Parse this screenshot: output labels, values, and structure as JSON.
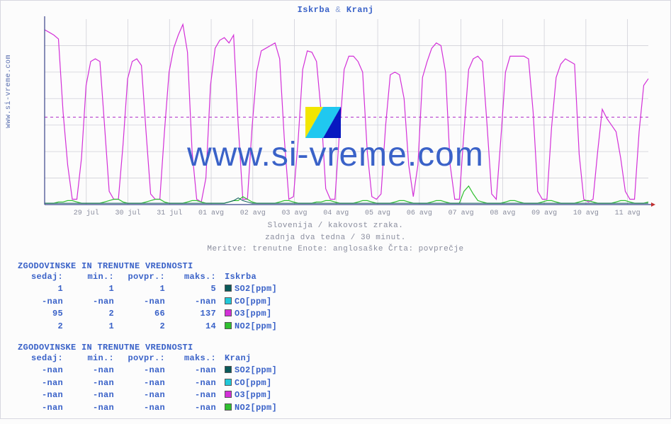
{
  "title_station1": "Iskrba",
  "title_amp": "&",
  "title_station2": "Kranj",
  "site_label": "www.si-vreme.com",
  "watermark_text": "www.si-vreme.com",
  "subcaption_line1": "Slovenija / kakovost zraka.",
  "subcaption_line2": "zadnja dva tedna / 30 minut.",
  "subcaption_line3": "Meritve: trenutne  Enote: anglosaške  Črta: povprečje",
  "chart": {
    "type": "line",
    "background_color": "#fcfcfc",
    "grid_color": "#d0d0d8",
    "axis_color": "#3a448a",
    "mean_line_color": "#b030c8",
    "mean_line_value": 66,
    "ylim": [
      0,
      140
    ],
    "yticks": [
      20,
      40,
      60,
      80,
      100,
      120
    ],
    "xticks": [
      "29 jul",
      "30 jul",
      "31 jul",
      "01 avg",
      "02 avg",
      "03 avg",
      "04 avg",
      "05 avg",
      "06 avg",
      "07 avg",
      "08 avg",
      "09 avg",
      "10 avg",
      "11 avg"
    ],
    "tick_fontsize": 10,
    "tick_color": "#8a8d9e",
    "series": [
      {
        "name": "O3",
        "color": "#d330d8",
        "width": 1.2,
        "values": [
          132,
          130,
          128,
          125,
          70,
          30,
          4,
          4,
          35,
          90,
          108,
          110,
          108,
          60,
          10,
          4,
          4,
          45,
          95,
          108,
          110,
          105,
          55,
          8,
          4,
          4,
          55,
          100,
          118,
          128,
          136,
          115,
          40,
          4,
          2,
          20,
          90,
          118,
          124,
          126,
          122,
          128,
          60,
          4,
          4,
          58,
          100,
          116,
          118,
          120,
          122,
          110,
          50,
          4,
          6,
          48,
          102,
          116,
          115,
          108,
          70,
          12,
          4,
          4,
          55,
          102,
          112,
          112,
          108,
          100,
          40,
          6,
          4,
          8,
          60,
          98,
          100,
          98,
          80,
          30,
          6,
          30,
          96,
          108,
          118,
          122,
          120,
          100,
          30,
          4,
          4,
          55,
          102,
          110,
          112,
          108,
          60,
          8,
          4,
          50,
          100,
          112,
          112,
          112,
          112,
          110,
          70,
          10,
          4,
          4,
          58,
          96,
          106,
          110,
          108,
          106,
          38,
          4,
          2,
          4,
          40,
          72,
          65,
          60,
          55,
          35,
          10,
          4,
          4,
          55,
          90,
          95
        ]
      },
      {
        "name": "NO2",
        "color": "#30c030",
        "width": 1.2,
        "values": [
          1,
          1,
          1,
          2,
          2,
          3,
          3,
          2,
          1,
          1,
          1,
          1,
          1,
          2,
          3,
          4,
          4,
          2,
          1,
          1,
          1,
          1,
          2,
          3,
          4,
          4,
          2,
          1,
          1,
          1,
          1,
          2,
          3,
          3,
          2,
          1,
          1,
          1,
          1,
          1,
          2,
          3,
          3,
          6,
          4,
          2,
          1,
          1,
          1,
          1,
          1,
          2,
          3,
          3,
          2,
          1,
          1,
          1,
          1,
          2,
          2,
          3,
          3,
          2,
          1,
          1,
          1,
          1,
          2,
          3,
          3,
          2,
          1,
          1,
          1,
          1,
          2,
          3,
          3,
          2,
          1,
          1,
          1,
          1,
          2,
          3,
          3,
          2,
          1,
          1,
          1,
          10,
          14,
          8,
          3,
          2,
          1,
          1,
          1,
          1,
          2,
          3,
          3,
          2,
          1,
          1,
          1,
          1,
          2,
          3,
          3,
          2,
          1,
          1,
          1,
          1,
          2,
          3,
          3,
          2,
          1,
          1,
          1,
          1,
          2,
          3,
          3,
          2,
          1,
          1,
          1,
          2
        ]
      },
      {
        "name": "SO2",
        "color": "#0a5a5a",
        "width": 1.0,
        "values": [
          1,
          1,
          1,
          1,
          1,
          1,
          1,
          1,
          1,
          1,
          1,
          1,
          1,
          1,
          1,
          1,
          1,
          1,
          1,
          1,
          1,
          1,
          1,
          1,
          1,
          1,
          1,
          1,
          1,
          1,
          1,
          1,
          1,
          1,
          1,
          1,
          1,
          1,
          1,
          1,
          2,
          3,
          5,
          3,
          2,
          1,
          1,
          1,
          1,
          1,
          1,
          1,
          1,
          1,
          1,
          1,
          1,
          1,
          1,
          1,
          1,
          1,
          1,
          1,
          1,
          1,
          1,
          1,
          1,
          1,
          1,
          1,
          1,
          1,
          1,
          1,
          1,
          1,
          1,
          1,
          1,
          1,
          1,
          1,
          1,
          1,
          1,
          1,
          1,
          1,
          1,
          1,
          1,
          1,
          1,
          1,
          1,
          1,
          1,
          1,
          1,
          1,
          1,
          1,
          1,
          1,
          1,
          1,
          1,
          1,
          1,
          1,
          1,
          1,
          1,
          1,
          1,
          1,
          1,
          1,
          1,
          1,
          1,
          1,
          1,
          1,
          1,
          1,
          1,
          1,
          1,
          1
        ]
      }
    ]
  },
  "tables_title": "ZGODOVINSKE IN TRENUTNE VREDNOSTI",
  "table_headers": [
    "sedaj:",
    "min.:",
    "povpr.:",
    "maks.:"
  ],
  "table1_station": "Iskrba",
  "table2_station": "Kranj",
  "metrics": [
    "SO2[ppm]",
    "CO[ppm]",
    "O3[ppm]",
    "NO2[ppm]"
  ],
  "metric_colors": [
    "#0a5a5a",
    "#20c8d8",
    "#d330d8",
    "#30c030"
  ],
  "table1_rows": [
    [
      "1",
      "1",
      "1",
      "5"
    ],
    [
      "-nan",
      "-nan",
      "-nan",
      "-nan"
    ],
    [
      "95",
      "2",
      "66",
      "137"
    ],
    [
      "2",
      "1",
      "2",
      "14"
    ]
  ],
  "table2_rows": [
    [
      "-nan",
      "-nan",
      "-nan",
      "-nan"
    ],
    [
      "-nan",
      "-nan",
      "-nan",
      "-nan"
    ],
    [
      "-nan",
      "-nan",
      "-nan",
      "-nan"
    ],
    [
      "-nan",
      "-nan",
      "-nan",
      "-nan"
    ]
  ]
}
